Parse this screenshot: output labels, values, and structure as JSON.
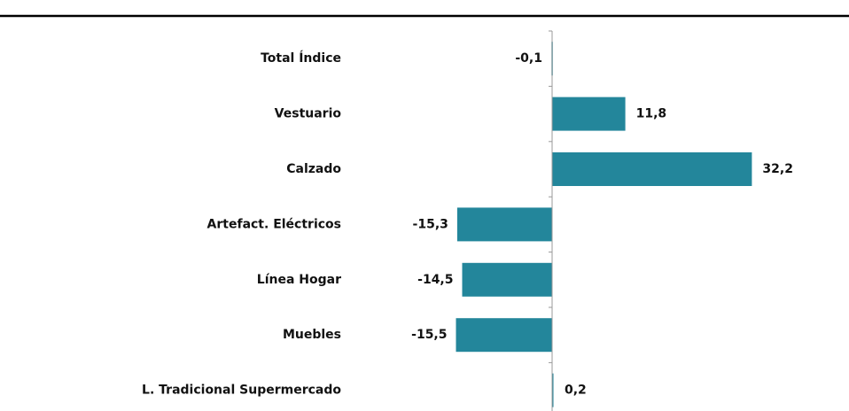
{
  "chart_data": {
    "type": "bar",
    "orientation": "horizontal",
    "categories": [
      "Total Índice",
      "Vestuario",
      "Calzado",
      "Artefact. Eléctricos",
      "Línea Hogar",
      "Muebles",
      "L. Tradicional Supermercado"
    ],
    "values": [
      -0.1,
      11.8,
      32.2,
      -15.3,
      -14.5,
      -15.5,
      0.2
    ],
    "value_labels": [
      "-0,1",
      "11,8",
      "32,2",
      "-15,3",
      "-14,5",
      "-15,5",
      "0,2"
    ],
    "color": "#23869b",
    "xlim": [
      -20,
      40
    ]
  }
}
